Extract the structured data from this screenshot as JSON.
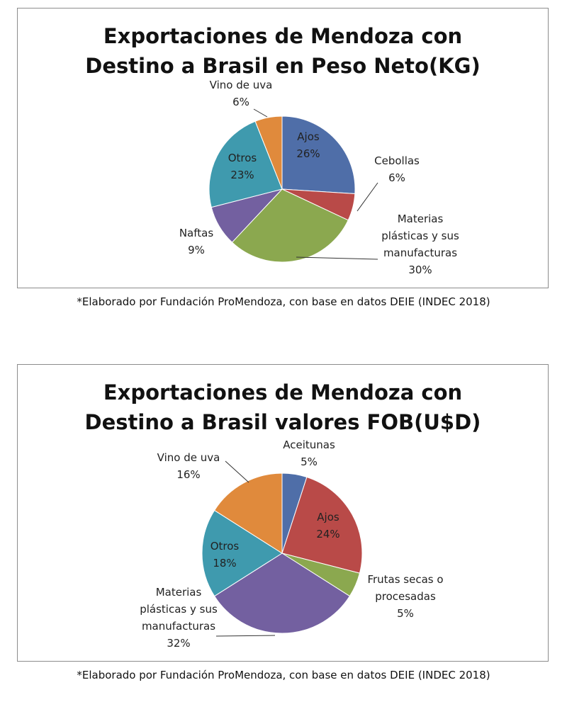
{
  "chart_data": [
    {
      "type": "pie",
      "title_lines": [
        "Exportaciones de Mendoza con",
        "Destino a Brasil en Peso Neto(KG)"
      ],
      "slices": [
        {
          "name": "Ajos",
          "value": 26,
          "label": "26%",
          "color": "#4f6ea8"
        },
        {
          "name": "Cebollas",
          "value": 6,
          "label": "6%",
          "color": "#b94a48"
        },
        {
          "name": "Materias plásticas y sus manufacturas",
          "value": 30,
          "label": "30%",
          "color": "#8ba84f"
        },
        {
          "name": "Naftas",
          "value": 9,
          "label": "9%",
          "color": "#7360a0"
        },
        {
          "name": "Otros",
          "value": 23,
          "label": "23%",
          "color": "#3f9aae"
        },
        {
          "name": "Vino de uva",
          "value": 6,
          "label": "6%",
          "color": "#e08a3c"
        }
      ]
    },
    {
      "type": "pie",
      "title_lines": [
        "Exportaciones de Mendoza con",
        "Destino a Brasil valores FOB(U$D)"
      ],
      "slices": [
        {
          "name": "Aceitunas",
          "value": 5,
          "label": "5%",
          "color": "#4f6ea8"
        },
        {
          "name": "Ajos",
          "value": 24,
          "label": "24%",
          "color": "#b94a48"
        },
        {
          "name": "Frutas secas o procesadas",
          "value": 5,
          "label": "5%",
          "color": "#8ba84f"
        },
        {
          "name": "Materias plásticas y sus manufacturas",
          "value": 32,
          "label": "32%",
          "color": "#7360a0"
        },
        {
          "name": "Otros",
          "value": 18,
          "label": "18%",
          "color": "#3f9aae"
        },
        {
          "name": "Vino de uva",
          "value": 16,
          "label": "16%",
          "color": "#e08a3c"
        }
      ]
    }
  ],
  "captions": [
    "*Elaborado por Fundación ProMendoza, con base en datos DEIE (INDEC 2018)",
    "*Elaborado por Fundación ProMendoza, con base en datos DEIE (INDEC 2018)"
  ]
}
